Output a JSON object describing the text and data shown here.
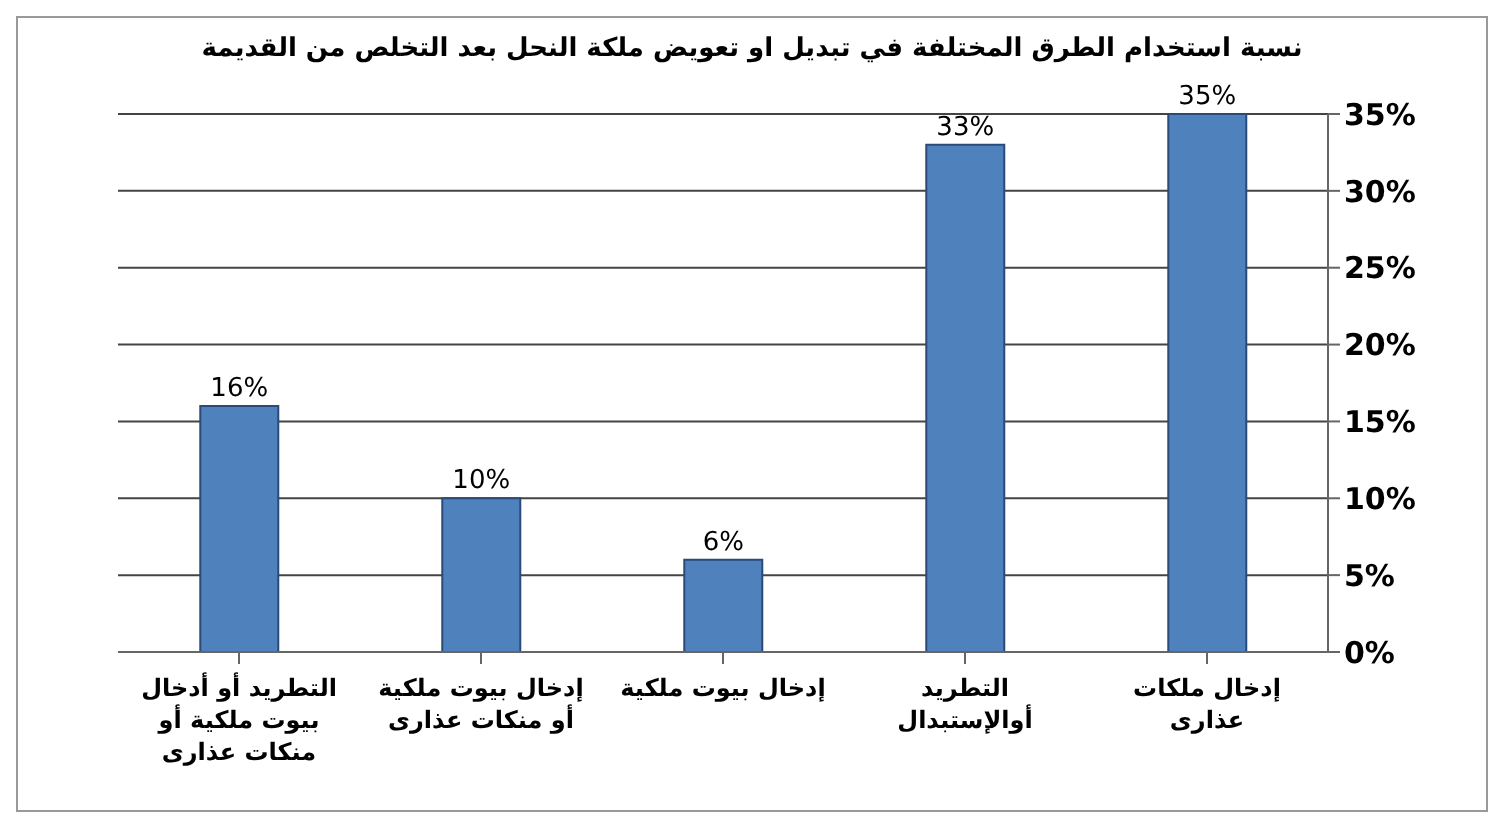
{
  "chart_data": {
    "type": "bar",
    "title": "نسبة استخدام الطرق المختلفة في تبديل او تعويض ملكة النحل بعد التخلص من القديمة",
    "categories": [
      "التطريد أو أدخال بيوت ملكية أو منكات عذارى",
      "إدخال بيوت ملكية أو منكات عذارى",
      "إدخال بيوت ملكية",
      "التطريد أوالإستبدال",
      "إدخال ملكات عذارى"
    ],
    "values": [
      16,
      10,
      6,
      33,
      35
    ],
    "color": "#4f81bd",
    "value_labels": [
      "16%",
      "10%",
      "6%",
      "33%",
      "35%"
    ],
    "ylim": [
      0,
      35
    ],
    "yticks": [
      {
        "value": 0,
        "label": "0%"
      },
      {
        "value": 5,
        "label": "5%"
      },
      {
        "value": 10,
        "label": "10%"
      },
      {
        "value": 15,
        "label": "15%"
      },
      {
        "value": 20,
        "label": "20%"
      },
      {
        "value": 25,
        "label": "25%"
      },
      {
        "value": 30,
        "label": "30%"
      },
      {
        "value": 35,
        "label": "35%"
      }
    ],
    "grid": "y",
    "legend": false
  }
}
